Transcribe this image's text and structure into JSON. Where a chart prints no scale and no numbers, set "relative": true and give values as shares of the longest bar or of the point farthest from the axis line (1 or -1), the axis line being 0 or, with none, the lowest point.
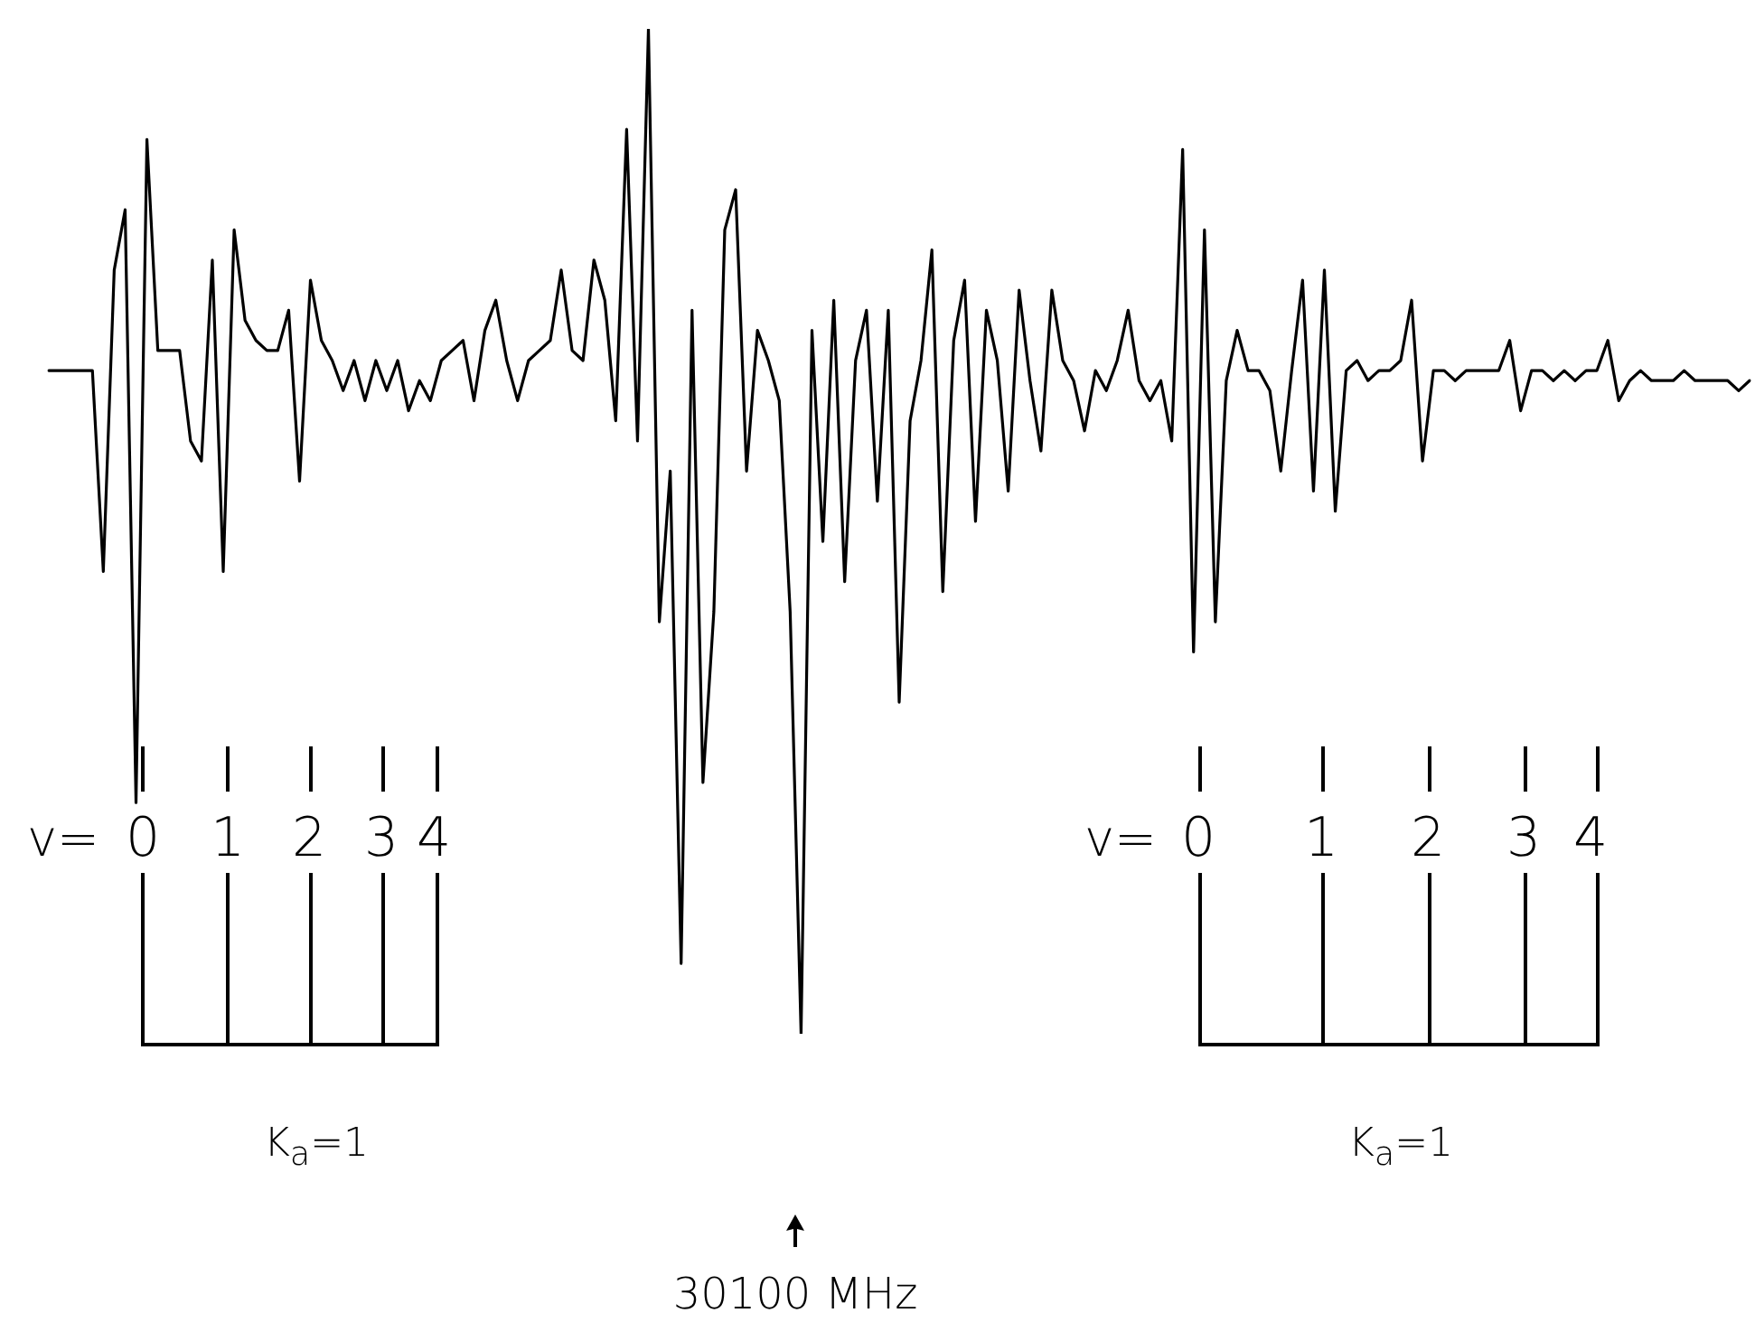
{
  "chart_data": {
    "type": "line",
    "relative": true,
    "color": "#000000",
    "marker": "none",
    "line_style": "solid",
    "legend": false,
    "tick_labels": false,
    "categories": [
      null,
      null,
      null,
      null,
      null,
      null,
      null,
      null,
      null,
      null,
      null,
      null,
      null,
      null,
      null,
      null,
      null,
      null,
      null,
      null,
      null,
      null,
      null,
      null,
      null,
      null,
      null,
      null,
      null,
      null,
      null,
      null,
      null,
      null,
      null,
      null,
      null,
      null,
      null,
      null,
      null,
      null,
      null,
      null,
      null,
      null,
      null,
      null,
      null,
      null,
      null,
      null,
      null,
      null,
      null,
      null,
      null,
      null,
      null,
      null,
      null,
      null,
      null,
      null,
      null,
      null,
      null,
      null,
      null,
      null,
      null,
      null,
      null,
      null,
      null,
      null,
      null,
      null,
      null,
      null,
      null,
      null,
      null,
      null,
      null,
      null,
      null,
      null,
      null,
      null,
      null,
      null,
      null,
      null,
      null,
      null,
      null,
      null,
      null,
      null,
      null,
      null,
      null,
      null,
      null,
      null,
      null,
      null,
      null,
      null,
      null,
      null,
      null,
      null,
      null,
      null,
      null,
      null,
      null,
      null,
      null,
      null,
      null,
      null,
      null,
      null,
      null,
      null,
      null,
      null,
      null,
      null,
      null,
      null,
      null,
      null,
      null,
      null,
      null,
      null,
      null,
      null,
      null,
      null,
      null,
      null,
      null,
      null,
      null,
      null,
      null,
      null,
      null,
      null,
      null,
      null,
      null
    ],
    "values": [
      0.66,
      0.66,
      0.66,
      0.66,
      0.66,
      0.46,
      0.76,
      0.82,
      0.23,
      0.89,
      0.68,
      0.68,
      0.68,
      0.59,
      0.57,
      0.77,
      0.46,
      0.8,
      0.71,
      0.69,
      0.68,
      0.68,
      0.72,
      0.55,
      0.75,
      0.69,
      0.67,
      0.64,
      0.67,
      0.63,
      0.67,
      0.64,
      0.67,
      0.62,
      0.65,
      0.63,
      0.67,
      0.68,
      0.69,
      0.63,
      0.7,
      0.73,
      0.67,
      0.63,
      0.67,
      0.68,
      0.69,
      0.76,
      0.68,
      0.67,
      0.77,
      0.73,
      0.61,
      0.9,
      0.59,
      1,
      0.41,
      0.56,
      0.07,
      0.72,
      0.25,
      0.42,
      0.8,
      0.84,
      0.56,
      0.7,
      0.67,
      0.63,
      0.42,
      0,
      0.7,
      0.49,
      0.73,
      0.45,
      0.67,
      0.72,
      0.53,
      0.72,
      0.33,
      0.61,
      0.67,
      0.78,
      0.44,
      0.69,
      0.75,
      0.51,
      0.72,
      0.67,
      0.54,
      0.74,
      0.65,
      0.58,
      0.74,
      0.67,
      0.65,
      0.6,
      0.66,
      0.64,
      0.67,
      0.72,
      0.65,
      0.63,
      0.65,
      0.59,
      0.88,
      0.38,
      0.8,
      0.41,
      0.65,
      0.7,
      0.66,
      0.66,
      0.64,
      0.56,
      0.66,
      0.75,
      0.54,
      0.76,
      0.52,
      0.66,
      0.67,
      0.65,
      0.66,
      0.66,
      0.67,
      0.73,
      0.57,
      0.66,
      0.66,
      0.65,
      0.66,
      0.66,
      0.66,
      0.66,
      0.69,
      0.62,
      0.66,
      0.66,
      0.65,
      0.66,
      0.65,
      0.66,
      0.66,
      0.69,
      0.63,
      0.65,
      0.66,
      0.65,
      0.65,
      0.65,
      0.66,
      0.65,
      0.65,
      0.65,
      0.65,
      0.64,
      0.65
    ],
    "annotations": [
      "v=",
      "0",
      "1",
      "2",
      "3",
      "4",
      "K$_{a}$=1",
      "v=",
      "0",
      "1",
      "2",
      "3",
      "4",
      "K$_{a}$=1",
      "30100 MHz"
    ]
  }
}
